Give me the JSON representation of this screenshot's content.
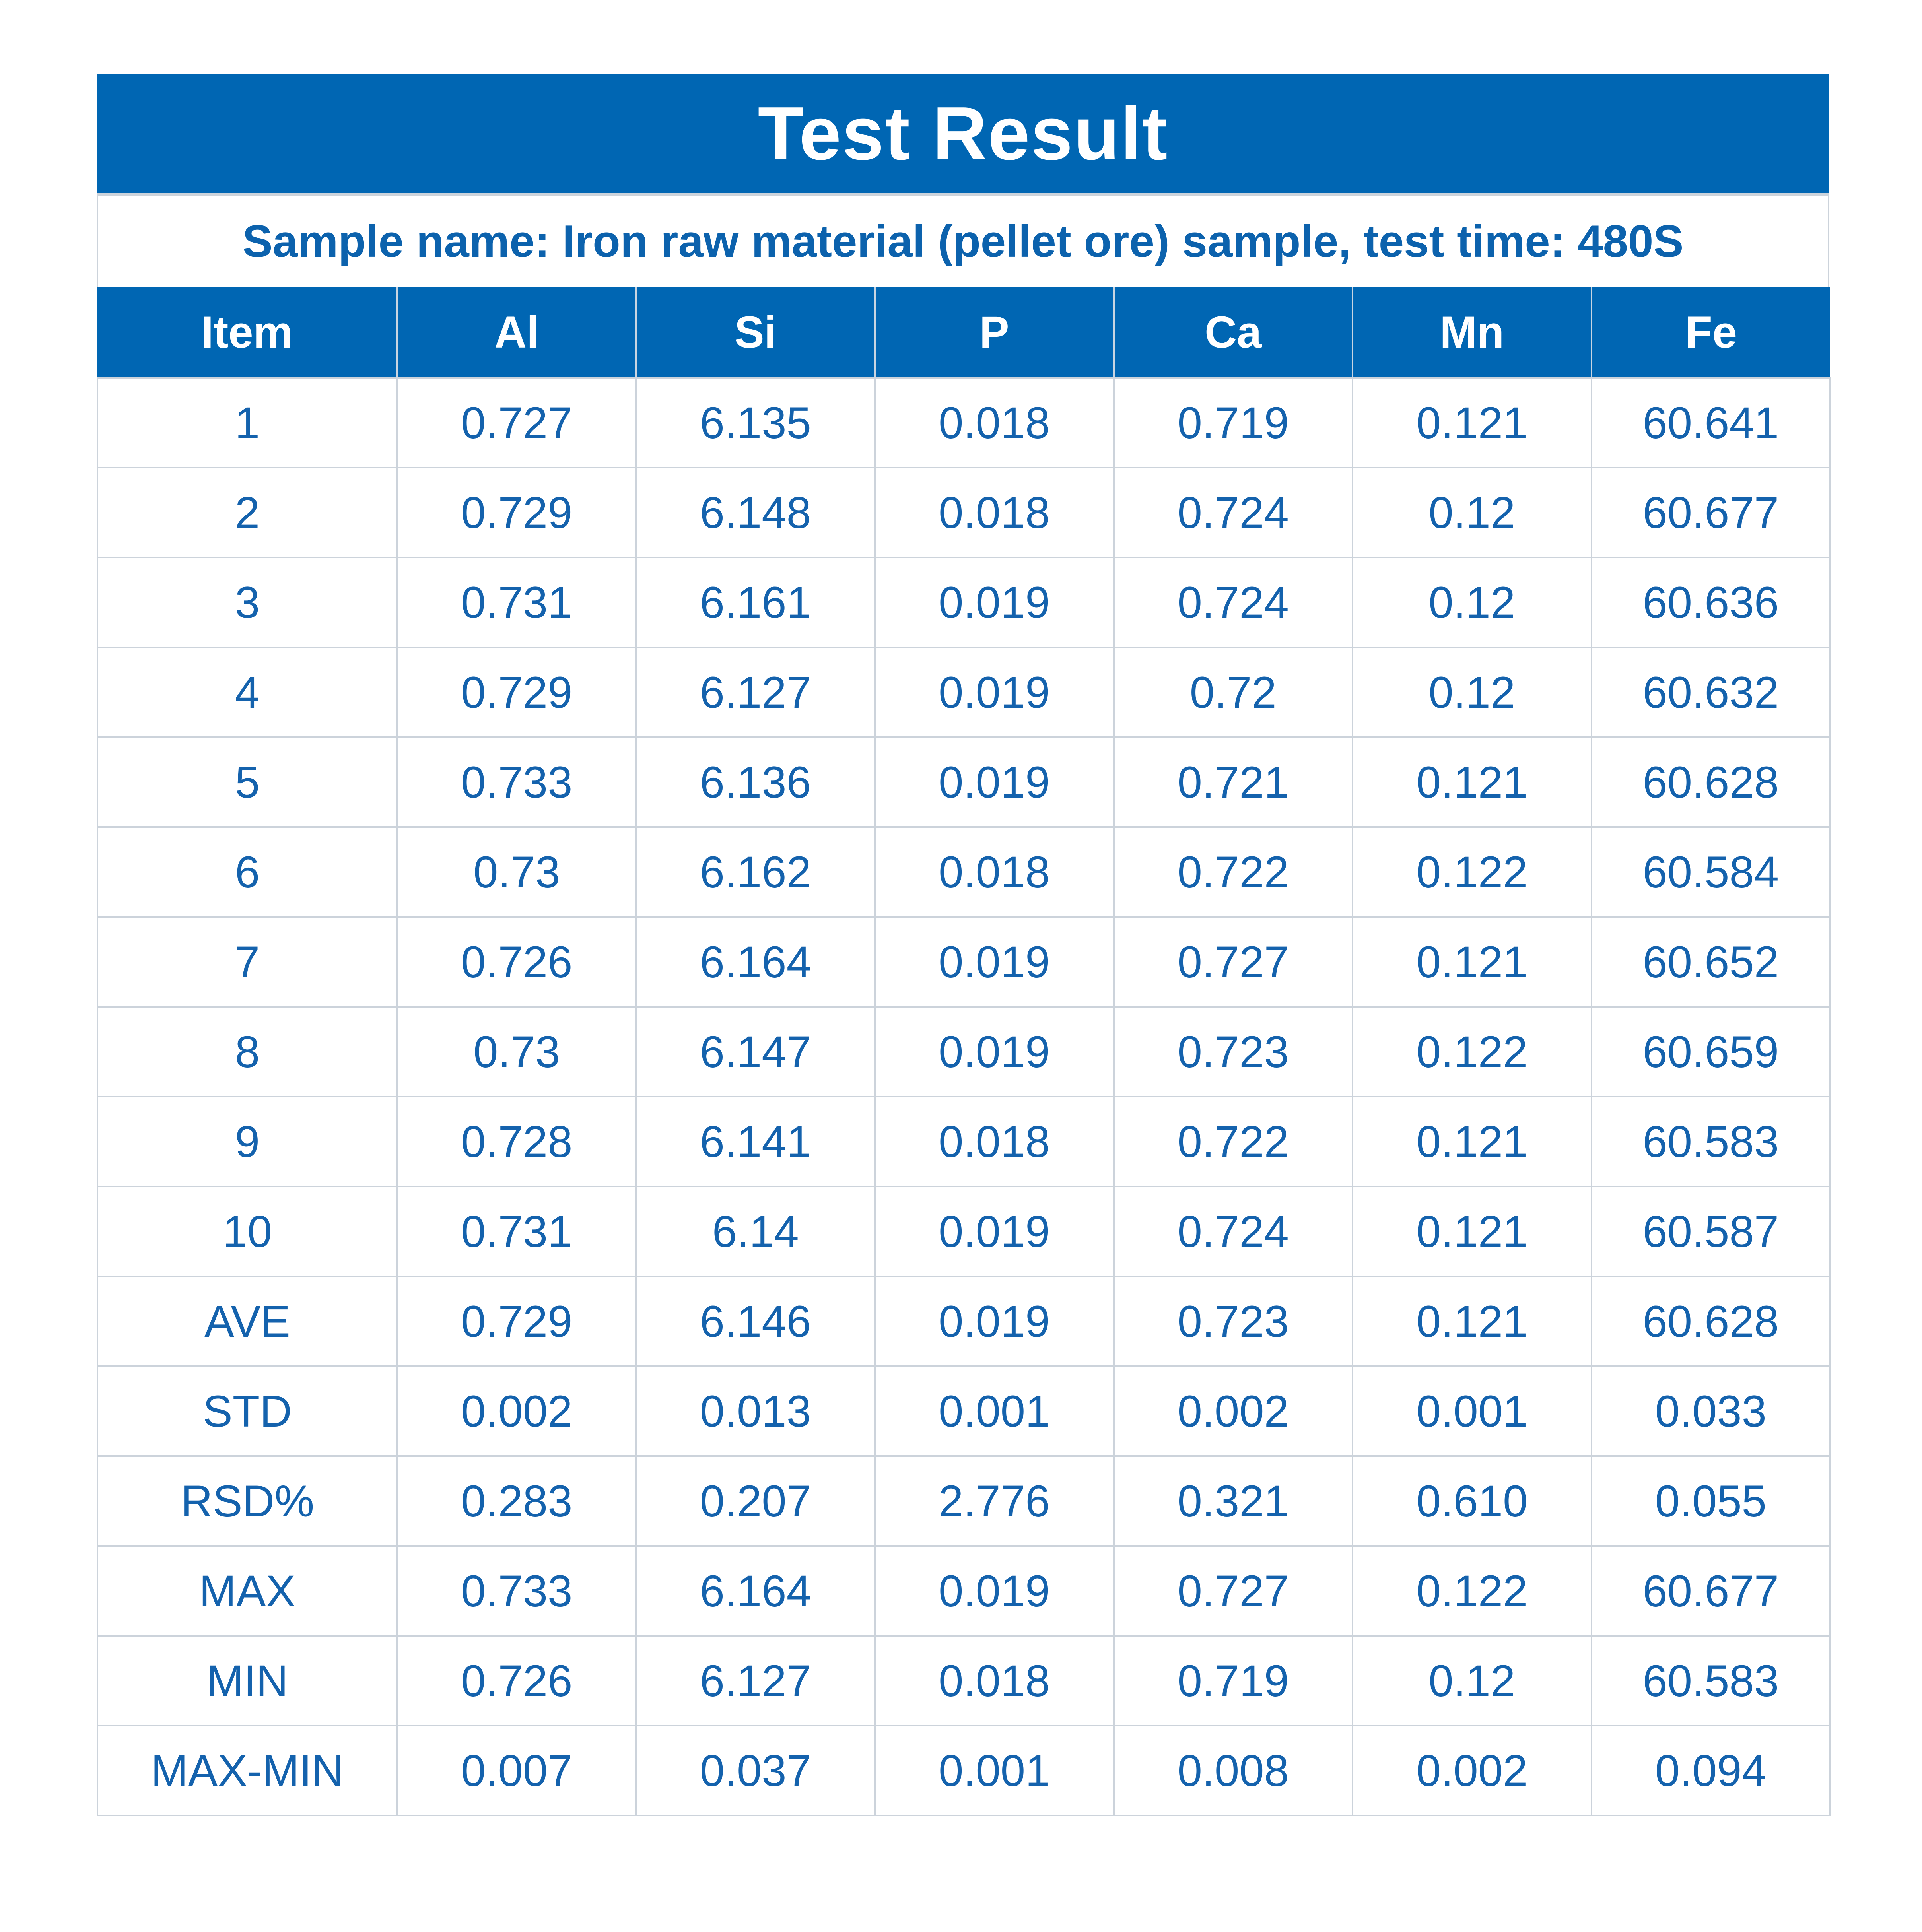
{
  "title": "Test Result",
  "subtitle": "Sample name: Iron raw material (pellet ore) sample, test time: 480S",
  "table": {
    "headers": [
      "Item",
      "Al",
      "Si",
      "P",
      "Ca",
      "Mn",
      "Fe"
    ],
    "rows": [
      [
        "1",
        "0.727",
        "6.135",
        "0.018",
        "0.719",
        "0.121",
        "60.641"
      ],
      [
        "2",
        "0.729",
        "6.148",
        "0.018",
        "0.724",
        "0.12",
        "60.677"
      ],
      [
        "3",
        "0.731",
        "6.161",
        "0.019",
        "0.724",
        "0.12",
        "60.636"
      ],
      [
        "4",
        "0.729",
        "6.127",
        "0.019",
        "0.72",
        "0.12",
        "60.632"
      ],
      [
        "5",
        "0.733",
        "6.136",
        "0.019",
        "0.721",
        "0.121",
        "60.628"
      ],
      [
        "6",
        "0.73",
        "6.162",
        "0.018",
        "0.722",
        "0.122",
        "60.584"
      ],
      [
        "7",
        "0.726",
        "6.164",
        "0.019",
        "0.727",
        "0.121",
        "60.652"
      ],
      [
        "8",
        "0.73",
        "6.147",
        "0.019",
        "0.723",
        "0.122",
        "60.659"
      ],
      [
        "9",
        "0.728",
        "6.141",
        "0.018",
        "0.722",
        "0.121",
        "60.583"
      ],
      [
        "10",
        "0.731",
        "6.14",
        "0.019",
        "0.724",
        "0.121",
        "60.587"
      ],
      [
        "AVE",
        "0.729",
        "6.146",
        "0.019",
        "0.723",
        "0.121",
        "60.628"
      ],
      [
        "STD",
        "0.002",
        "0.013",
        "0.001",
        "0.002",
        "0.001",
        "0.033"
      ],
      [
        "RSD%",
        "0.283",
        "0.207",
        "2.776",
        "0.321",
        "0.610",
        "0.055"
      ],
      [
        "MAX",
        "0.733",
        "6.164",
        "0.019",
        "0.727",
        "0.122",
        "60.677"
      ],
      [
        "MIN",
        "0.726",
        "6.127",
        "0.018",
        "0.719",
        "0.12",
        "60.583"
      ],
      [
        "MAX-MIN",
        "0.007",
        "0.037",
        "0.001",
        "0.008",
        "0.002",
        "0.094"
      ]
    ]
  },
  "colors": {
    "header_bg": "#0066b3",
    "header_text": "#ffffff",
    "body_text": "#1462ad",
    "grid": "#ccd3db"
  }
}
